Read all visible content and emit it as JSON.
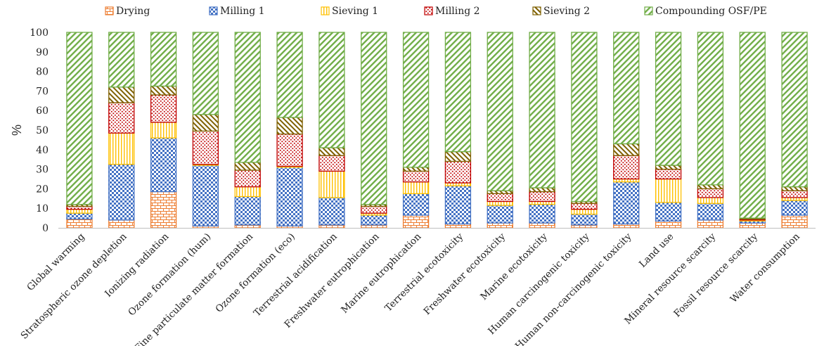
{
  "chart_data": {
    "type": "bar",
    "stacked": true,
    "ylabel": "%",
    "ylim": [
      0,
      100
    ],
    "yticks": [
      0,
      10,
      20,
      30,
      40,
      50,
      60,
      70,
      80,
      90,
      100
    ],
    "grid": false,
    "legend_position": "top",
    "categories": [
      "Global warming",
      "Stratospheric ozone depletion",
      "Ionizing radiation",
      "Ozone formation (hum)",
      "Fine particulate matter formation",
      "Ozone formation (eco)",
      "Terrestrial acidification",
      "Freshwater eutrophication",
      "Marine eutrophication",
      "Terrestrial ecotoxicity",
      "Freshwater ecotoxicity",
      "Marine ecotoxicity",
      "Human carcinogenic toxicity",
      "Human non-carcinogenic toxicity",
      "Land use",
      "Mineral resource scarcity",
      "Fossil resource scarcity",
      "Water consumption"
    ],
    "series": [
      {
        "name": "Drying",
        "color": "#ED7D31",
        "pattern": "brick",
        "values": [
          4.5,
          4,
          18.5,
          1,
          1.5,
          1,
          1.5,
          1.5,
          6.5,
          2,
          2.5,
          2.5,
          1.5,
          2,
          3.5,
          4,
          2.5,
          6.5
        ]
      },
      {
        "name": "Milling 1",
        "color": "#4472C4",
        "pattern": "checker",
        "values": [
          3,
          28.5,
          27.5,
          31,
          14.5,
          30,
          14,
          5,
          11,
          19.5,
          9,
          9.5,
          5.5,
          21.5,
          9.5,
          8.5,
          1,
          7.5
        ]
      },
      {
        "name": "Sieving 1",
        "color": "#FFC000",
        "pattern": "vertical",
        "values": [
          2,
          16,
          8,
          0.5,
          5,
          0.5,
          13.5,
          1,
          6,
          1.5,
          2,
          1.5,
          2.5,
          1.5,
          12,
          3,
          0.5,
          1.5
        ]
      },
      {
        "name": "Milling 2",
        "color": "#C00000",
        "pattern": "dots",
        "values": [
          1.5,
          15.5,
          14,
          17,
          8.5,
          16.5,
          8,
          3.5,
          5.5,
          11,
          4,
          5,
          3,
          12,
          5,
          4.5,
          0.5,
          3.5
        ]
      },
      {
        "name": "Sieving 2",
        "color": "#7F6000",
        "pattern": "backdiag",
        "values": [
          1,
          8,
          4.5,
          8.5,
          4,
          8.5,
          4,
          1,
          2,
          5,
          1.5,
          2,
          1,
          6,
          2,
          2,
          0.5,
          2
        ]
      },
      {
        "name": "Compounding OSF/PE",
        "color": "#70AD47",
        "pattern": "fwddiag",
        "values": [
          88,
          28,
          27.5,
          42,
          66.5,
          43.5,
          59,
          88,
          69,
          61,
          81,
          79.5,
          86.5,
          57,
          68,
          78,
          95,
          79
        ]
      }
    ]
  }
}
